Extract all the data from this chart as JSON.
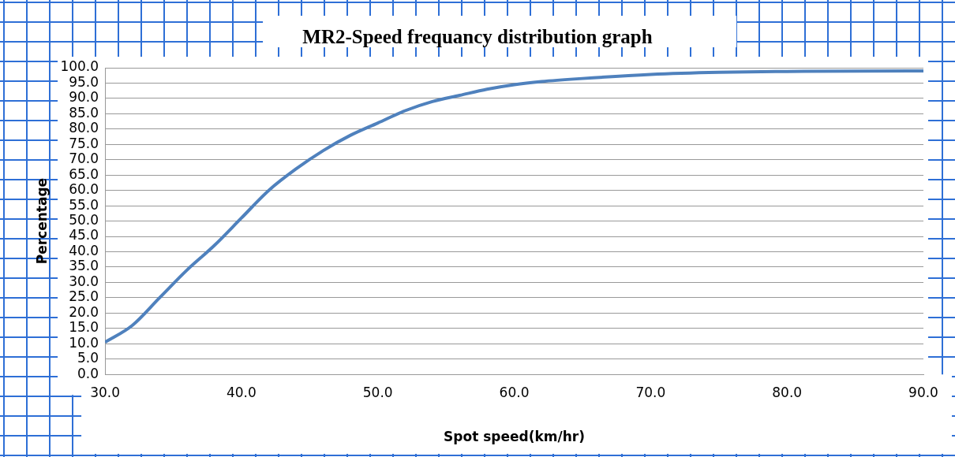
{
  "chart_data": {
    "type": "line",
    "title": "MR2-Speed frequancy distribution graph",
    "xlabel": "Spot speed(km/hr)",
    "ylabel": "Percentage",
    "series": [
      {
        "color": "#4f81bd",
        "x": [
          30,
          32,
          34,
          36,
          38,
          40,
          42,
          44,
          46,
          48,
          50,
          52,
          54,
          56,
          58,
          60,
          62,
          65,
          70,
          75,
          80,
          90
        ],
        "values": [
          10.5,
          16,
          25,
          34,
          42,
          51,
          60,
          67,
          73,
          78,
          82,
          86,
          89,
          91,
          93,
          94.5,
          95.5,
          96.5,
          97.8,
          98.5,
          98.8,
          99
        ]
      }
    ],
    "xlim": [
      30,
      90
    ],
    "xticks": [
      {
        "value": 30,
        "label": "30.0"
      },
      {
        "value": 40,
        "label": "40.0"
      },
      {
        "value": 50,
        "label": "50.0"
      },
      {
        "value": 60,
        "label": "60.0"
      },
      {
        "value": 70,
        "label": "70.0"
      },
      {
        "value": 80,
        "label": "80.0"
      },
      {
        "value": 90,
        "label": "90.0"
      }
    ],
    "ylim": [
      0,
      100
    ],
    "yticks": [
      {
        "value": 0,
        "label": "0.0"
      },
      {
        "value": 5,
        "label": "5.0"
      },
      {
        "value": 10,
        "label": "10.0"
      },
      {
        "value": 15,
        "label": "15.0"
      },
      {
        "value": 20,
        "label": "20.0"
      },
      {
        "value": 25,
        "label": "25.0"
      },
      {
        "value": 30,
        "label": "30.0"
      },
      {
        "value": 35,
        "label": "35.0"
      },
      {
        "value": 40,
        "label": "40.0"
      },
      {
        "value": 45,
        "label": "45.0"
      },
      {
        "value": 50,
        "label": "50.0"
      },
      {
        "value": 55,
        "label": "55.0"
      },
      {
        "value": 60,
        "label": "60.0"
      },
      {
        "value": 65,
        "label": "65.0"
      },
      {
        "value": 70,
        "label": "70.0"
      },
      {
        "value": 75,
        "label": "75.0"
      },
      {
        "value": 80,
        "label": "80.0"
      },
      {
        "value": 85,
        "label": "85.0"
      },
      {
        "value": 90,
        "label": "90.0"
      },
      {
        "value": 95,
        "label": "95.0"
      },
      {
        "value": 100,
        "label": "100.0"
      }
    ],
    "grid": "y",
    "legend": false,
    "marker": "none",
    "line_style": "solid"
  }
}
